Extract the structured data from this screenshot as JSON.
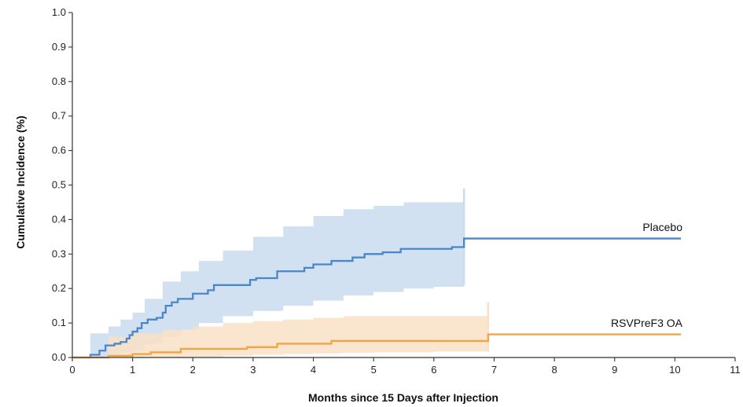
{
  "chart_data": {
    "type": "line",
    "title": "",
    "xlabel": "Months since 15 Days after Injection",
    "ylabel": "Cumulative Incidence (%)",
    "xlim": [
      0,
      11
    ],
    "ylim": [
      0,
      1.0
    ],
    "xticks": [
      "0",
      "1",
      "2",
      "3",
      "4",
      "5",
      "6",
      "7",
      "8",
      "9",
      "10",
      "11"
    ],
    "yticks": [
      "0.0",
      "0.1",
      "0.2",
      "0.3",
      "0.4",
      "0.5",
      "0.6",
      "0.7",
      "0.8",
      "0.9",
      "1.0"
    ],
    "grid": false,
    "series": [
      {
        "name": "Placebo",
        "color": "#4a86c8",
        "band_color": "#c9dcf0",
        "points": [
          [
            0,
            0
          ],
          [
            0.3,
            0
          ],
          [
            0.3,
            0.008
          ],
          [
            0.45,
            0.02
          ],
          [
            0.55,
            0.035
          ],
          [
            0.7,
            0.04
          ],
          [
            0.8,
            0.045
          ],
          [
            0.9,
            0.055
          ],
          [
            0.95,
            0.065
          ],
          [
            1.0,
            0.075
          ],
          [
            1.08,
            0.085
          ],
          [
            1.15,
            0.1
          ],
          [
            1.25,
            0.11
          ],
          [
            1.4,
            0.115
          ],
          [
            1.5,
            0.13
          ],
          [
            1.55,
            0.15
          ],
          [
            1.65,
            0.16
          ],
          [
            1.75,
            0.17
          ],
          [
            2.0,
            0.185
          ],
          [
            2.25,
            0.195
          ],
          [
            2.35,
            0.21
          ],
          [
            2.95,
            0.225
          ],
          [
            3.05,
            0.23
          ],
          [
            3.4,
            0.25
          ],
          [
            3.85,
            0.26
          ],
          [
            4.0,
            0.27
          ],
          [
            4.3,
            0.28
          ],
          [
            4.65,
            0.29
          ],
          [
            4.85,
            0.3
          ],
          [
            5.15,
            0.305
          ],
          [
            5.45,
            0.315
          ],
          [
            6.3,
            0.32
          ],
          [
            6.5,
            0.345
          ],
          [
            10.1,
            0.345
          ]
        ],
        "band": [
          [
            0.3,
            0,
            0.07
          ],
          [
            0.6,
            0.01,
            0.09
          ],
          [
            0.8,
            0.015,
            0.11
          ],
          [
            1.0,
            0.02,
            0.13
          ],
          [
            1.2,
            0.04,
            0.17
          ],
          [
            1.5,
            0.06,
            0.22
          ],
          [
            1.8,
            0.08,
            0.25
          ],
          [
            2.1,
            0.1,
            0.28
          ],
          [
            2.5,
            0.12,
            0.31
          ],
          [
            3.0,
            0.135,
            0.35
          ],
          [
            3.5,
            0.15,
            0.38
          ],
          [
            4.0,
            0.165,
            0.41
          ],
          [
            4.5,
            0.18,
            0.43
          ],
          [
            5.0,
            0.19,
            0.44
          ],
          [
            5.5,
            0.2,
            0.45
          ],
          [
            6.0,
            0.205,
            0.45
          ],
          [
            6.5,
            0.21,
            0.47
          ]
        ],
        "band_spike": [
          6.5,
          0.49
        ]
      },
      {
        "name": "RSVPreF3 OA",
        "color": "#f0a443",
        "band_color": "#f9e0c6",
        "points": [
          [
            0,
            0
          ],
          [
            0.6,
            0
          ],
          [
            0.6,
            0.005
          ],
          [
            1.0,
            0.01
          ],
          [
            1.3,
            0.015
          ],
          [
            1.8,
            0.025
          ],
          [
            2.9,
            0.03
          ],
          [
            3.4,
            0.04
          ],
          [
            4.3,
            0.048
          ],
          [
            6.9,
            0.05
          ],
          [
            6.9,
            0.067
          ],
          [
            10.1,
            0.067
          ]
        ],
        "band": [
          [
            0.6,
            0,
            0.06
          ],
          [
            1.0,
            0,
            0.07
          ],
          [
            1.5,
            0,
            0.08
          ],
          [
            2.0,
            0.002,
            0.09
          ],
          [
            2.5,
            0.005,
            0.1
          ],
          [
            3.0,
            0.008,
            0.105
          ],
          [
            3.5,
            0.01,
            0.11
          ],
          [
            4.0,
            0.012,
            0.115
          ],
          [
            4.5,
            0.014,
            0.12
          ],
          [
            5.0,
            0.015,
            0.12
          ],
          [
            6.0,
            0.017,
            0.12
          ],
          [
            6.9,
            0.018,
            0.12
          ]
        ],
        "band_spike": [
          6.9,
          0.16
        ]
      }
    ]
  }
}
